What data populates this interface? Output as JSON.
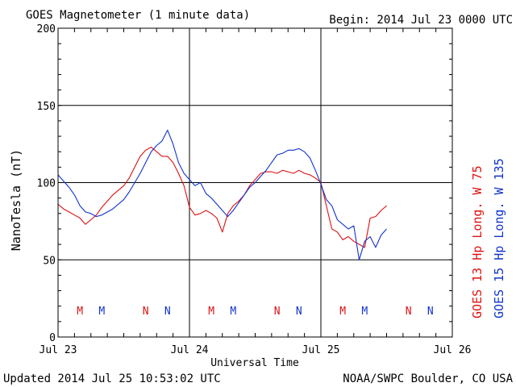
{
  "header": {
    "title": "GOES Magnetometer (1 minute data)",
    "begin": "Begin:  2014 Jul 23 0000 UTC"
  },
  "footer": {
    "updated": "Updated 2014 Jul 25 10:53:02 UTC",
    "credit": "NOAA/SWPC Boulder, CO USA"
  },
  "colors": {
    "goes13": "#dd1111",
    "goes15": "#1133cc",
    "axis": "#000000"
  },
  "chart_data": {
    "type": "line",
    "title": "GOES Magnetometer (1 minute data)",
    "xlabel": "Universal Time",
    "ylabel": "NanoTesla (nT)",
    "ylim": [
      0,
      200
    ],
    "xlim": [
      0,
      72
    ],
    "x_unit": "hours since 2014 Jul 23 0000 UTC",
    "yticks": [
      0,
      50,
      100,
      150,
      200
    ],
    "xticks": [
      {
        "x": 0,
        "label": "Jul 23"
      },
      {
        "x": 24,
        "label": "Jul 24"
      },
      {
        "x": 48,
        "label": "Jul 25"
      },
      {
        "x": 72,
        "label": "Jul 26"
      }
    ],
    "grid": true,
    "legend_position": "right, vertical",
    "series": [
      {
        "name": "GOES 13 Hp",
        "legend_label": "GOES 13 Hp  Long. W 75",
        "color": "#dd1111",
        "x": [
          0,
          1,
          2,
          3,
          4,
          5,
          6,
          7,
          8,
          9,
          10,
          11,
          12,
          13,
          14,
          15,
          16,
          17,
          18,
          19,
          20,
          21,
          22,
          23,
          24,
          25,
          26,
          27,
          28,
          29,
          30,
          31,
          32,
          33,
          34,
          35,
          36,
          37,
          38,
          39,
          40,
          41,
          42,
          43,
          44,
          45,
          46,
          47,
          48,
          49,
          50,
          51,
          52,
          53,
          54,
          55,
          56,
          57,
          58,
          59,
          60
        ],
        "values": [
          86,
          83,
          81,
          79,
          77,
          73,
          76,
          79,
          84,
          88,
          92,
          95,
          98,
          103,
          110,
          117,
          121,
          123,
          120,
          117,
          117,
          113,
          106,
          98,
          84,
          79,
          80,
          82,
          80,
          77,
          68,
          80,
          85,
          88,
          92,
          98,
          102,
          106,
          107,
          107,
          106,
          108,
          107,
          106,
          108,
          106,
          105,
          103,
          100,
          85,
          70,
          68,
          63,
          65,
          62,
          60,
          58,
          77,
          78,
          82,
          85
        ]
      },
      {
        "name": "GOES 15 Hp",
        "legend_label": "GOES 15 Hp  Long. W 135",
        "color": "#1133cc",
        "x": [
          0,
          1,
          2,
          3,
          4,
          5,
          6,
          7,
          8,
          9,
          10,
          11,
          12,
          13,
          14,
          15,
          16,
          17,
          18,
          19,
          20,
          21,
          22,
          23,
          24,
          25,
          26,
          27,
          28,
          29,
          30,
          31,
          32,
          33,
          34,
          35,
          36,
          37,
          38,
          39,
          40,
          41,
          42,
          43,
          44,
          45,
          46,
          47,
          48,
          49,
          50,
          51,
          52,
          53,
          54,
          55,
          56,
          57,
          58,
          59,
          60
        ],
        "values": [
          105,
          101,
          97,
          92,
          85,
          81,
          80,
          78,
          79,
          81,
          83,
          86,
          89,
          94,
          100,
          106,
          113,
          120,
          124,
          127,
          134,
          125,
          113,
          106,
          102,
          98,
          100,
          93,
          90,
          86,
          82,
          78,
          82,
          87,
          92,
          97,
          100,
          104,
          108,
          113,
          118,
          119,
          121,
          121,
          122,
          120,
          116,
          108,
          99,
          89,
          85,
          76,
          73,
          70,
          72,
          50,
          62,
          65,
          58,
          66,
          70
        ]
      }
    ],
    "event_markers": [
      {
        "x": 4,
        "label": "M",
        "series": "GOES 13 Hp"
      },
      {
        "x": 8,
        "label": "M",
        "series": "GOES 15 Hp"
      },
      {
        "x": 16,
        "label": "N",
        "series": "GOES 13 Hp"
      },
      {
        "x": 20,
        "label": "N",
        "series": "GOES 15 Hp"
      },
      {
        "x": 28,
        "label": "M",
        "series": "GOES 13 Hp"
      },
      {
        "x": 32,
        "label": "M",
        "series": "GOES 15 Hp"
      },
      {
        "x": 40,
        "label": "N",
        "series": "GOES 13 Hp"
      },
      {
        "x": 44,
        "label": "N",
        "series": "GOES 15 Hp"
      },
      {
        "x": 52,
        "label": "M",
        "series": "GOES 13 Hp"
      },
      {
        "x": 56,
        "label": "M",
        "series": "GOES 15 Hp"
      },
      {
        "x": 64,
        "label": "N",
        "series": "GOES 13 Hp"
      },
      {
        "x": 68,
        "label": "N",
        "series": "GOES 15 Hp"
      }
    ]
  }
}
